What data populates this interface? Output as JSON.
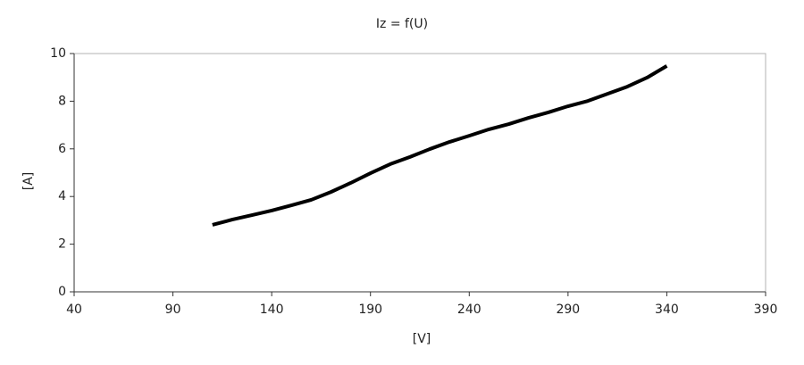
{
  "chart_data": {
    "type": "line",
    "title": "Iz = f(U)",
    "x_label": "[V]",
    "y_label": "[A]",
    "x": [
      110,
      120,
      130,
      140,
      150,
      160,
      170,
      180,
      190,
      200,
      210,
      220,
      230,
      240,
      250,
      260,
      270,
      280,
      290,
      300,
      310,
      320,
      330,
      340
    ],
    "series": [
      {
        "name": "Iz",
        "color": "#000000",
        "values": [
          2.81,
          3.03,
          3.22,
          3.41,
          3.63,
          3.86,
          4.19,
          4.57,
          4.98,
          5.36,
          5.66,
          5.99,
          6.29,
          6.55,
          6.82,
          7.04,
          7.3,
          7.53,
          7.79,
          8.01,
          8.31,
          8.61,
          8.99,
          9.48
        ]
      }
    ],
    "xlim": [
      40,
      390
    ],
    "xticks": [
      40,
      90,
      140,
      190,
      240,
      290,
      340,
      390
    ],
    "ylim": [
      0,
      10
    ],
    "yticks": [
      0,
      2,
      4,
      6,
      8,
      10
    ],
    "grid": false
  }
}
